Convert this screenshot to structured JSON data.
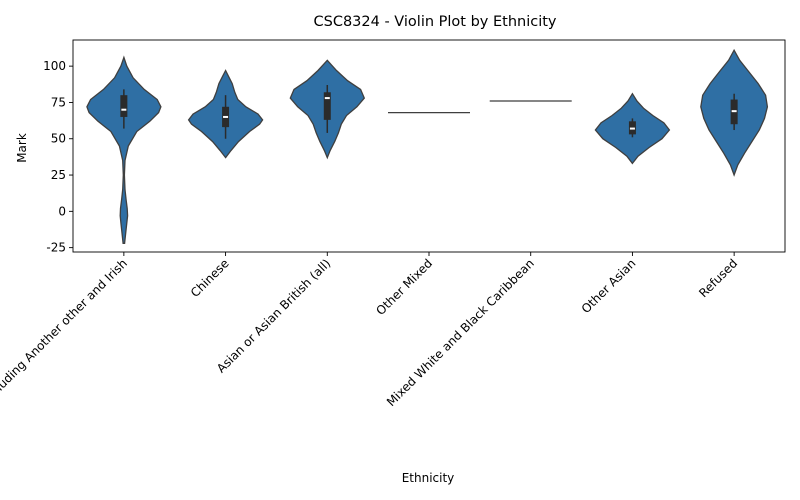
{
  "chart_data": {
    "type": "violin",
    "title": "CSC8324 - Violin Plot by Ethnicity",
    "xlabel": "Ethnicity",
    "ylabel": "Mark",
    "ylim": [
      -28,
      118
    ],
    "yticks": [
      -25,
      0,
      25,
      50,
      75,
      100
    ],
    "grid": false,
    "categories": [
      "White including Another other and Irish",
      "Chinese",
      "Asian or Asian British (all)",
      "Other Mixed",
      "Mixed White and Black Caribbean",
      "Other Asian",
      "Refused"
    ],
    "series": [
      {
        "category": "White including Another other and Irish",
        "min": 57,
        "q1": 65,
        "median": 70,
        "q3": 80,
        "max": 84,
        "density": [
          [
            -22,
            0.02
          ],
          [
            -15,
            0.05
          ],
          [
            -8,
            0.08
          ],
          [
            -3,
            0.1
          ],
          [
            2,
            0.09
          ],
          [
            8,
            0.06
          ],
          [
            15,
            0.03
          ],
          [
            25,
            0.015
          ],
          [
            35,
            0.03
          ],
          [
            45,
            0.12
          ],
          [
            55,
            0.35
          ],
          [
            62,
            0.7
          ],
          [
            68,
            0.94
          ],
          [
            72,
            1.0
          ],
          [
            77,
            0.9
          ],
          [
            84,
            0.55
          ],
          [
            92,
            0.25
          ],
          [
            100,
            0.08
          ],
          [
            106,
            0.0
          ]
        ]
      },
      {
        "category": "Chinese",
        "min": 50,
        "q1": 58,
        "median": 65,
        "q3": 72,
        "max": 80,
        "density": [
          [
            37,
            0.0
          ],
          [
            42,
            0.15
          ],
          [
            48,
            0.35
          ],
          [
            55,
            0.65
          ],
          [
            60,
            0.92
          ],
          [
            63,
            1.0
          ],
          [
            67,
            0.88
          ],
          [
            72,
            0.55
          ],
          [
            77,
            0.33
          ],
          [
            82,
            0.25
          ],
          [
            88,
            0.18
          ],
          [
            93,
            0.08
          ],
          [
            97,
            0.0
          ]
        ]
      },
      {
        "category": "Asian or Asian British (all)",
        "min": 54,
        "q1": 63,
        "median": 78,
        "q3": 82,
        "max": 87,
        "density": [
          [
            37,
            0.0
          ],
          [
            42,
            0.08
          ],
          [
            48,
            0.2
          ],
          [
            54,
            0.3
          ],
          [
            60,
            0.38
          ],
          [
            66,
            0.52
          ],
          [
            72,
            0.8
          ],
          [
            78,
            1.0
          ],
          [
            84,
            0.9
          ],
          [
            90,
            0.55
          ],
          [
            97,
            0.25
          ],
          [
            104,
            0.0
          ]
        ]
      },
      {
        "category": "Other Mixed",
        "value": 68
      },
      {
        "category": "Mixed White and Black Caribbean",
        "value": 76
      },
      {
        "category": "Other Asian",
        "min": 51,
        "q1": 53,
        "median": 57,
        "q3": 62,
        "max": 64,
        "density": [
          [
            33,
            0.0
          ],
          [
            38,
            0.15
          ],
          [
            44,
            0.45
          ],
          [
            50,
            0.8
          ],
          [
            56,
            1.0
          ],
          [
            61,
            0.85
          ],
          [
            66,
            0.55
          ],
          [
            71,
            0.3
          ],
          [
            76,
            0.12
          ],
          [
            81,
            0.0
          ]
        ]
      },
      {
        "category": "Refused",
        "min": 56,
        "q1": 60,
        "median": 69,
        "q3": 77,
        "max": 81,
        "density": [
          [
            25,
            0.0
          ],
          [
            32,
            0.1
          ],
          [
            40,
            0.28
          ],
          [
            48,
            0.48
          ],
          [
            56,
            0.68
          ],
          [
            64,
            0.82
          ],
          [
            72,
            0.9
          ],
          [
            80,
            0.85
          ],
          [
            88,
            0.65
          ],
          [
            96,
            0.4
          ],
          [
            104,
            0.15
          ],
          [
            111,
            0.0
          ]
        ]
      }
    ]
  }
}
